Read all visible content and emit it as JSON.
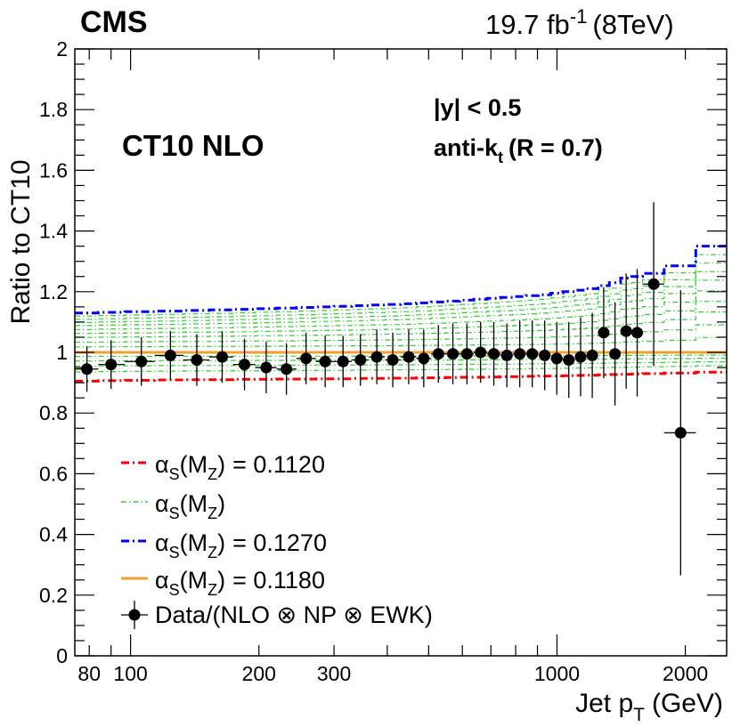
{
  "chart_data": {
    "type": "scatter",
    "experiment": "CMS",
    "lumi_label": "19.7 fb",
    "lumi_exp": "-1",
    "energy_label": "(8TeV)",
    "title": "CT10 NLO",
    "rapidity_label": "|y| < 0.5",
    "algo_label": "anti-k",
    "algo_sub": "t",
    "algo_radius": "(R = 0.7)",
    "xlabel": "Jet p",
    "xlabel_sub": "T",
    "xlabel_unit": "(GeV)",
    "ylabel": "Ratio to CT10",
    "xscale": "log",
    "xlim": [
      74,
      2500
    ],
    "ylim": [
      0,
      2
    ],
    "x_ticks": [
      {
        "value": 80,
        "label": "80"
      },
      {
        "value": 100,
        "label": "100"
      },
      {
        "value": 200,
        "label": "200"
      },
      {
        "value": 300,
        "label": "300"
      },
      {
        "value": 1000,
        "label": "1000"
      },
      {
        "value": 2000,
        "label": "2000"
      }
    ],
    "y_ticks": [
      {
        "value": 0,
        "label": "0"
      },
      {
        "value": 0.2,
        "label": "0.2"
      },
      {
        "value": 0.4,
        "label": "0.4"
      },
      {
        "value": 0.6,
        "label": "0.6"
      },
      {
        "value": 0.8,
        "label": "0.8"
      },
      {
        "value": 1,
        "label": "1"
      },
      {
        "value": 1.2,
        "label": "1.2"
      },
      {
        "value": 1.4,
        "label": "1.4"
      },
      {
        "value": 1.6,
        "label": "1.6"
      },
      {
        "value": 1.8,
        "label": "1.8"
      },
      {
        "value": 2,
        "label": "2"
      }
    ],
    "bin_edges": [
      74,
      84,
      97,
      114,
      133,
      153,
      174,
      196,
      220,
      245,
      272,
      300,
      330,
      362,
      395,
      430,
      468,
      507,
      548,
      592,
      638,
      686,
      737,
      790,
      846,
      905,
      967,
      1032,
      1101,
      1172,
      1248,
      1327,
      1410,
      1497,
      1588,
      1784,
      2116,
      2500
    ],
    "series": [
      {
        "name": "alpha_s(M_Z) = 0.1120",
        "kind": "band-low",
        "color": "#ff0000",
        "values": [
          0.905,
          0.907,
          0.908,
          0.909,
          0.91,
          0.91,
          0.911,
          0.911,
          0.912,
          0.912,
          0.913,
          0.913,
          0.914,
          0.914,
          0.915,
          0.915,
          0.916,
          0.916,
          0.917,
          0.918,
          0.918,
          0.919,
          0.92,
          0.92,
          0.921,
          0.922,
          0.922,
          0.923,
          0.924,
          0.925,
          0.926,
          0.927,
          0.928,
          0.929,
          0.93,
          0.932,
          0.935
        ]
      },
      {
        "name": "alpha_s(M_Z)",
        "kind": "band-mid",
        "color": "#00cc00",
        "values": []
      },
      {
        "name": "alpha_s(M_Z) = 0.1270",
        "kind": "band-high",
        "color": "#0000ff",
        "values": [
          1.13,
          1.132,
          1.134,
          1.136,
          1.138,
          1.14,
          1.142,
          1.144,
          1.146,
          1.148,
          1.15,
          1.152,
          1.154,
          1.156,
          1.158,
          1.16,
          1.163,
          1.166,
          1.169,
          1.172,
          1.175,
          1.178,
          1.181,
          1.184,
          1.187,
          1.19,
          1.195,
          1.2,
          1.205,
          1.21,
          1.22,
          1.23,
          1.245,
          1.25,
          1.26,
          1.285,
          1.35
        ]
      },
      {
        "name": "alpha_s(M_Z) = 0.1180",
        "kind": "nominal",
        "color": "#ff9933",
        "values": [
          1.0
        ]
      }
    ],
    "data_points": {
      "name": "Data/(NLO ⊗ NP ⊗ EWK)",
      "x": [
        79,
        90,
        106,
        124,
        143,
        164,
        185,
        208,
        232,
        258,
        286,
        315,
        346,
        378,
        412,
        449,
        487,
        527,
        570,
        615,
        662,
        711,
        763,
        818,
        875,
        936,
        999,
        1066,
        1136,
        1210,
        1287,
        1368,
        1453,
        1542,
        1686,
        1950,
        2300
      ],
      "y": [
        0.945,
        0.96,
        0.97,
        0.99,
        0.975,
        0.985,
        0.96,
        0.95,
        0.945,
        0.98,
        0.97,
        0.97,
        0.975,
        0.985,
        0.975,
        0.985,
        0.98,
        0.995,
        0.995,
        0.995,
        1.0,
        0.995,
        0.99,
        0.995,
        0.995,
        0.99,
        0.98,
        0.975,
        0.985,
        0.99,
        1.065,
        0.995,
        1.07,
        1.065,
        1.225,
        0.735,
        null
      ],
      "yerr": [
        0.075,
        0.08,
        0.08,
        0.08,
        0.085,
        0.085,
        0.085,
        0.085,
        0.085,
        0.085,
        0.085,
        0.085,
        0.085,
        0.09,
        0.09,
        0.09,
        0.095,
        0.095,
        0.1,
        0.1,
        0.1,
        0.105,
        0.105,
        0.11,
        0.11,
        0.115,
        0.12,
        0.125,
        0.13,
        0.14,
        0.15,
        0.17,
        0.19,
        0.21,
        0.27,
        0.47,
        null
      ]
    },
    "legend": [
      {
        "label": "= 0.1120",
        "kind": "dashdot-red"
      },
      {
        "label": "",
        "kind": "dashdot-green"
      },
      {
        "label": "= 0.1270",
        "kind": "dashdot-blue"
      },
      {
        "label": "= 0.1180",
        "kind": "solid-orange"
      },
      {
        "label": "Data/(NLO ⊗ NP ⊗ EWK)",
        "kind": "marker"
      }
    ],
    "legend_symbol": "α",
    "legend_sub_s": "S",
    "legend_open": "(M",
    "legend_sub_z": "Z",
    "legend_close": ")",
    "legend_position": "bottom-left",
    "colors": {
      "red": "#ff0000",
      "green": "#33cc33",
      "blue": "#0000ff",
      "orange": "#f0a030",
      "data": "#000000"
    }
  }
}
